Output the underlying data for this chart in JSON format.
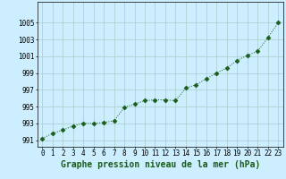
{
  "x": [
    0,
    1,
    2,
    3,
    4,
    5,
    6,
    7,
    8,
    9,
    10,
    11,
    12,
    13,
    14,
    15,
    16,
    17,
    18,
    19,
    20,
    21,
    22,
    23
  ],
  "y": [
    991.2,
    991.8,
    992.2,
    992.7,
    993.0,
    993.0,
    993.1,
    993.3,
    994.9,
    995.3,
    995.7,
    995.8,
    995.8,
    995.7,
    997.2,
    997.6,
    998.3,
    999.0,
    999.6,
    1000.5,
    1001.1,
    1001.6,
    1003.2,
    1005.0
  ],
  "line_color": "#1a5c1a",
  "marker": "D",
  "marker_size": 2.5,
  "bg_color": "#cceeff",
  "grid_color": "#aacccc",
  "xlabel": "Graphe pression niveau de la mer (hPa)",
  "xlabel_fontsize": 7,
  "ylabel_ticks": [
    991,
    993,
    995,
    997,
    999,
    1001,
    1003,
    1005
  ],
  "xlim": [
    -0.5,
    23.5
  ],
  "ylim": [
    990.2,
    1007.5
  ],
  "xticks": [
    0,
    1,
    2,
    3,
    4,
    5,
    6,
    7,
    8,
    9,
    10,
    11,
    12,
    13,
    14,
    15,
    16,
    17,
    18,
    19,
    20,
    21,
    22,
    23
  ],
  "tick_fontsize": 5.5,
  "title_color": "#1a5c1a"
}
